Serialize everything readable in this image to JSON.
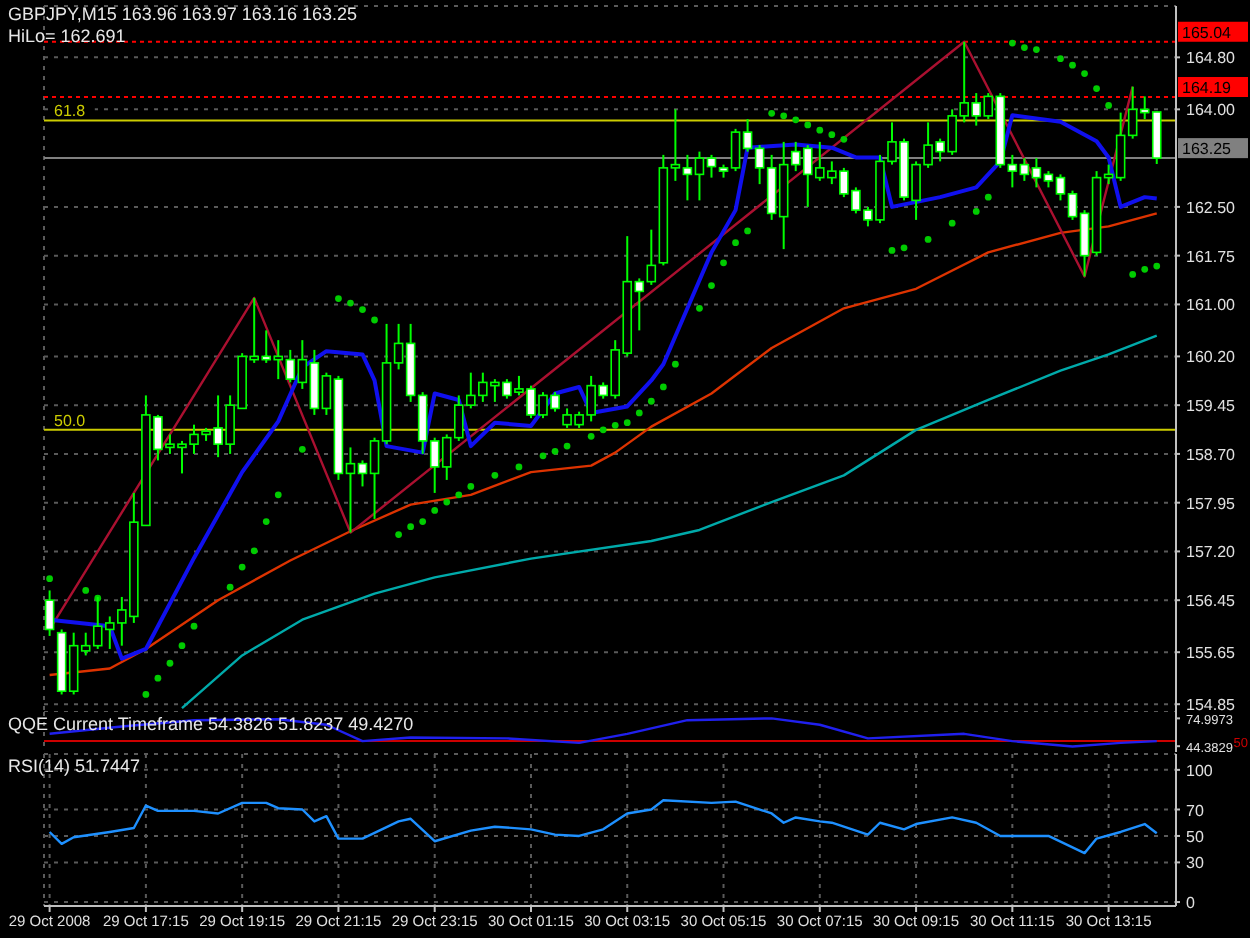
{
  "chart_data": [
    {
      "type": "candlestick",
      "title": "GBPJPY,M15 163.96 163.97 163.16 163.25",
      "subtitle": "HiLo= 162.691",
      "xlim": [
        "2008-10-29T15:08",
        "2008-10-30T14:39"
      ],
      "xticks": [
        {
          "value": "2008-10-29T15:15",
          "label": null
        },
        {
          "value": "2008-10-29T17:15",
          "label": null
        },
        {
          "value": "2008-10-29T19:15",
          "label": null
        },
        {
          "value": "2008-10-29T21:15",
          "label": null
        },
        {
          "value": "2008-10-29T23:15",
          "label": null
        },
        {
          "value": "2008-10-30T01:15",
          "label": null
        },
        {
          "value": "2008-10-30T03:15",
          "label": null
        },
        {
          "value": "2008-10-30T05:15",
          "label": null
        },
        {
          "value": "2008-10-30T07:15",
          "label": null
        },
        {
          "value": "2008-10-30T09:15",
          "label": null
        },
        {
          "value": "2008-10-30T11:15",
          "label": null
        },
        {
          "value": "2008-10-30T13:15",
          "label": null
        }
      ],
      "ylim": [
        154.73,
        165.59
      ],
      "yticks": [
        {
          "value": 154.85,
          "label": "154.85"
        },
        {
          "value": 155.65,
          "label": "155.65"
        },
        {
          "value": 156.45,
          "label": "156.45"
        },
        {
          "value": 157.2,
          "label": "157.20"
        },
        {
          "value": 157.95,
          "label": "157.95"
        },
        {
          "value": 158.7,
          "label": "158.70"
        },
        {
          "value": 159.45,
          "label": "159.45"
        },
        {
          "value": 160.2,
          "label": "160.20"
        },
        {
          "value": 161.0,
          "label": "161.00"
        },
        {
          "value": 161.75,
          "label": "161.75"
        },
        {
          "value": 162.5,
          "label": "162.50"
        },
        {
          "value": 164.0,
          "label": "164.00"
        },
        {
          "value": 164.8,
          "label": "164.80"
        }
      ],
      "tick_labels": "y",
      "grid": true,
      "ref_lines": [
        {
          "axis": "y",
          "value": 165.04,
          "label": "165.04",
          "color": "#ff0000",
          "line_style": "dotted"
        },
        {
          "axis": "y",
          "value": 164.19,
          "label": "164.19",
          "color": "#ff0000",
          "line_style": "dotted"
        },
        {
          "axis": "y",
          "value": 163.83,
          "color": "#cccc00",
          "line_style": "solid"
        },
        {
          "axis": "y",
          "value": 163.25,
          "label": "163.25",
          "color": "#808080",
          "line_style": "solid"
        },
        {
          "axis": "y",
          "value": 159.07,
          "color": "#cccc00",
          "line_style": "solid"
        }
      ],
      "annotations": [
        "61.8",
        "50.0"
      ],
      "series": [
        {
          "type": "line",
          "color": "#00aaaa",
          "x": [
            "2008-10-29T18:00",
            "2008-10-29T19:15",
            "2008-10-29T20:30",
            "2008-10-29T22:00",
            "2008-10-29T23:15",
            "2008-10-30T01:15",
            "2008-10-30T03:45",
            "2008-10-30T04:45",
            "2008-10-30T06:15",
            "2008-10-30T07:45",
            "2008-10-30T09:15",
            "2008-10-30T10:45",
            "2008-10-30T12:15",
            "2008-10-30T13:15",
            "2008-10-30T14:15"
          ],
          "values": [
            154.79,
            155.6,
            156.15,
            156.55,
            156.8,
            157.09,
            157.36,
            157.53,
            157.96,
            158.37,
            159.07,
            159.53,
            159.98,
            160.23,
            160.52
          ]
        },
        {
          "type": "line",
          "color": "#dd3300",
          "x": [
            "2008-10-29T15:15",
            "2008-10-29T16:30",
            "2008-10-29T17:15",
            "2008-10-29T18:45",
            "2008-10-29T20:15",
            "2008-10-29T21:30",
            "2008-10-29T22:45",
            "2008-10-30T00:00",
            "2008-10-30T01:15",
            "2008-10-30T02:30",
            "2008-10-30T03:00",
            "2008-10-30T03:45",
            "2008-10-30T05:00",
            "2008-10-30T06:15",
            "2008-10-30T07:45",
            "2008-10-30T09:15",
            "2008-10-30T10:45",
            "2008-10-30T12:15",
            "2008-10-30T13:15",
            "2008-10-30T14:15"
          ],
          "values": [
            155.3,
            155.4,
            155.7,
            156.45,
            157.06,
            157.51,
            157.92,
            158.07,
            158.42,
            158.52,
            158.72,
            159.12,
            159.63,
            160.33,
            160.94,
            161.24,
            161.8,
            162.1,
            162.2,
            162.4
          ]
        },
        {
          "type": "line",
          "color": "#aa1030",
          "x": [
            "2008-10-29T15:15",
            "2008-10-29T19:30",
            "2008-10-29T21:30",
            "2008-10-30T10:15",
            "2008-10-30T12:45",
            "2008-10-30T13:45"
          ],
          "values": [
            156.0,
            161.1,
            157.49,
            165.04,
            161.43,
            164.35
          ]
        },
        {
          "type": "line",
          "color": "#1010ee",
          "x": [
            "2008-10-29T15:15",
            "2008-10-29T16:30",
            "2008-10-29T16:45",
            "2008-10-29T17:15",
            "2008-10-29T18:15",
            "2008-10-29T19:15",
            "2008-10-29T20:00",
            "2008-10-29T20:30",
            "2008-10-29T21:00",
            "2008-10-29T21:45",
            "2008-10-29T22:00",
            "2008-10-29T22:15",
            "2008-10-29T23:00",
            "2008-10-29T23:15",
            "2008-10-29T23:45",
            "2008-10-30T00:00",
            "2008-10-30T00:30",
            "2008-10-30T01:15",
            "2008-10-30T01:45",
            "2008-10-30T02:15",
            "2008-10-30T02:30",
            "2008-10-30T03:15",
            "2008-10-30T03:45",
            "2008-10-30T04:00",
            "2008-10-30T04:30",
            "2008-10-30T05:00",
            "2008-10-30T05:30",
            "2008-10-30T05:45",
            "2008-10-30T06:45",
            "2008-10-30T07:30",
            "2008-10-30T08:00",
            "2008-10-30T08:30",
            "2008-10-30T08:45",
            "2008-10-30T09:45",
            "2008-10-30T10:30",
            "2008-10-30T11:00",
            "2008-10-30T11:15",
            "2008-10-30T12:15",
            "2008-10-30T13:00",
            "2008-10-30T13:15",
            "2008-10-30T13:30",
            "2008-10-30T14:00",
            "2008-10-30T14:15"
          ],
          "values": [
            156.15,
            156.05,
            155.55,
            155.7,
            157.1,
            158.42,
            159.2,
            160.03,
            160.28,
            160.23,
            159.83,
            158.82,
            158.72,
            159.63,
            159.53,
            158.82,
            159.18,
            159.13,
            159.63,
            159.73,
            159.33,
            159.43,
            159.83,
            160.08,
            160.94,
            161.8,
            162.45,
            163.41,
            163.46,
            163.41,
            163.26,
            163.26,
            162.5,
            162.65,
            162.8,
            163.2,
            163.91,
            163.81,
            163.51,
            163.26,
            162.5,
            162.65,
            162.63
          ]
        },
        {
          "type": "scatter",
          "marker": "circle",
          "color": "#00cc00",
          "x": [
            "2008-10-29T15:15",
            "2008-10-29T16:00",
            "2008-10-29T16:15",
            "2008-10-29T17:15",
            "2008-10-29T17:30",
            "2008-10-29T17:45",
            "2008-10-29T18:00",
            "2008-10-29T18:15",
            "2008-10-29T19:00",
            "2008-10-29T19:15",
            "2008-10-29T19:30",
            "2008-10-29T19:45",
            "2008-10-29T20:00",
            "2008-10-29T20:30",
            "2008-10-29T21:15",
            "2008-10-29T21:30",
            "2008-10-29T21:45",
            "2008-10-29T22:00",
            "2008-10-29T22:30",
            "2008-10-29T22:45",
            "2008-10-29T23:00",
            "2008-10-29T23:15",
            "2008-10-29T23:30",
            "2008-10-29T23:45",
            "2008-10-30T00:00",
            "2008-10-30T00:30",
            "2008-10-30T01:00",
            "2008-10-30T01:30",
            "2008-10-30T01:45",
            "2008-10-30T02:00",
            "2008-10-30T02:30",
            "2008-10-30T02:45",
            "2008-10-30T03:00",
            "2008-10-30T03:15",
            "2008-10-30T03:30",
            "2008-10-30T03:45",
            "2008-10-30T04:00",
            "2008-10-30T04:15",
            "2008-10-30T04:45",
            "2008-10-30T05:00",
            "2008-10-30T05:15",
            "2008-10-30T05:30",
            "2008-10-30T05:45",
            "2008-10-30T06:15",
            "2008-10-30T06:30",
            "2008-10-30T06:45",
            "2008-10-30T07:00",
            "2008-10-30T07:15",
            "2008-10-30T07:30",
            "2008-10-30T07:45",
            "2008-10-30T08:45",
            "2008-10-30T09:00",
            "2008-10-30T09:30",
            "2008-10-30T10:00",
            "2008-10-30T10:30",
            "2008-10-30T10:45",
            "2008-10-30T11:15",
            "2008-10-30T11:30",
            "2008-10-30T11:45",
            "2008-10-30T12:15",
            "2008-10-30T12:30",
            "2008-10-30T12:45",
            "2008-10-30T13:00",
            "2008-10-30T13:15",
            "2008-10-30T13:45",
            "2008-10-30T14:00",
            "2008-10-30T14:15"
          ],
          "values": [
            156.78,
            156.6,
            156.48,
            155.0,
            155.25,
            155.48,
            155.75,
            156.05,
            156.65,
            156.96,
            157.21,
            157.66,
            158.07,
            158.77,
            161.09,
            161.02,
            160.92,
            160.76,
            157.46,
            157.58,
            157.66,
            157.83,
            157.96,
            158.07,
            158.2,
            158.37,
            158.5,
            158.67,
            158.74,
            158.82,
            158.97,
            159.07,
            159.14,
            159.18,
            159.33,
            159.51,
            159.73,
            160.08,
            160.94,
            161.29,
            161.64,
            161.95,
            162.13,
            163.94,
            163.9,
            163.84,
            163.76,
            163.68,
            163.61,
            163.54,
            161.83,
            161.87,
            162.0,
            162.25,
            162.43,
            162.65,
            165.02,
            164.95,
            164.92,
            164.78,
            164.68,
            164.55,
            164.32,
            164.06,
            161.46,
            161.54,
            161.59
          ]
        },
        {
          "color": "#00ff00",
          "x": [
            "2008-10-29T15:15",
            "2008-10-29T15:30",
            "2008-10-29T15:45",
            "2008-10-29T16:00",
            "2008-10-29T16:15",
            "2008-10-29T16:30",
            "2008-10-29T16:45",
            "2008-10-29T17:00",
            "2008-10-29T17:15",
            "2008-10-29T17:30",
            "2008-10-29T17:45",
            "2008-10-29T18:00",
            "2008-10-29T18:15",
            "2008-10-29T18:30",
            "2008-10-29T18:45",
            "2008-10-29T19:00",
            "2008-10-29T19:15",
            "2008-10-29T19:30",
            "2008-10-29T19:45",
            "2008-10-29T20:00",
            "2008-10-29T20:15",
            "2008-10-29T20:30",
            "2008-10-29T20:45",
            "2008-10-29T21:00",
            "2008-10-29T21:15",
            "2008-10-29T21:30",
            "2008-10-29T21:45",
            "2008-10-29T22:00",
            "2008-10-29T22:15",
            "2008-10-29T22:30",
            "2008-10-29T22:45",
            "2008-10-29T23:00",
            "2008-10-29T23:15",
            "2008-10-29T23:30",
            "2008-10-29T23:45",
            "2008-10-30T00:00",
            "2008-10-30T00:15",
            "2008-10-30T00:30",
            "2008-10-30T00:45",
            "2008-10-30T01:00",
            "2008-10-30T01:15",
            "2008-10-30T01:30",
            "2008-10-30T01:45",
            "2008-10-30T02:00",
            "2008-10-30T02:15",
            "2008-10-30T02:30",
            "2008-10-30T02:45",
            "2008-10-30T03:00",
            "2008-10-30T03:15",
            "2008-10-30T03:30",
            "2008-10-30T03:45",
            "2008-10-30T04:00",
            "2008-10-30T04:15",
            "2008-10-30T04:30",
            "2008-10-30T04:45",
            "2008-10-30T05:00",
            "2008-10-30T05:15",
            "2008-10-30T05:30",
            "2008-10-30T05:45",
            "2008-10-30T06:00",
            "2008-10-30T06:15",
            "2008-10-30T06:30",
            "2008-10-30T06:45",
            "2008-10-30T07:00",
            "2008-10-30T07:15",
            "2008-10-30T07:30",
            "2008-10-30T07:45",
            "2008-10-30T08:00",
            "2008-10-30T08:15",
            "2008-10-30T08:30",
            "2008-10-30T08:45",
            "2008-10-30T09:00",
            "2008-10-30T09:15",
            "2008-10-30T09:30",
            "2008-10-30T09:45",
            "2008-10-30T10:00",
            "2008-10-30T10:15",
            "2008-10-30T10:30",
            "2008-10-30T10:45",
            "2008-10-30T11:00",
            "2008-10-30T11:15",
            "2008-10-30T11:30",
            "2008-10-30T11:45",
            "2008-10-30T12:00",
            "2008-10-30T12:15",
            "2008-10-30T12:30",
            "2008-10-30T12:45",
            "2008-10-30T13:00",
            "2008-10-30T13:15",
            "2008-10-30T13:30",
            "2008-10-30T13:45",
            "2008-10-30T14:00",
            "2008-10-30T14:15"
          ],
          "ohlc": [
            [
              156.45,
              156.6,
              155.9,
              156.0
            ],
            [
              155.95,
              156.0,
              155.0,
              155.05
            ],
            [
              155.05,
              155.95,
              155.0,
              155.75
            ],
            [
              155.67,
              155.95,
              155.6,
              155.75
            ],
            [
              155.75,
              156.5,
              155.7,
              156.05
            ],
            [
              156.0,
              156.2,
              155.7,
              156.1
            ],
            [
              156.1,
              156.5,
              155.75,
              156.3
            ],
            [
              156.2,
              158.1,
              156.1,
              157.65
            ],
            [
              157.6,
              159.6,
              157.6,
              159.3
            ],
            [
              159.27,
              159.3,
              158.6,
              158.77
            ],
            [
              158.8,
              159.0,
              158.7,
              158.85
            ],
            [
              158.8,
              158.9,
              158.4,
              158.85
            ],
            [
              158.85,
              159.15,
              158.7,
              159.0
            ],
            [
              159.0,
              159.1,
              158.9,
              159.05
            ],
            [
              159.1,
              159.6,
              158.65,
              158.85
            ],
            [
              158.85,
              159.6,
              158.7,
              159.45
            ],
            [
              159.4,
              160.25,
              159.4,
              160.2
            ],
            [
              160.15,
              161.1,
              160.1,
              160.2
            ],
            [
              160.2,
              160.6,
              160.1,
              160.15
            ],
            [
              160.15,
              160.45,
              159.85,
              160.2
            ],
            [
              160.15,
              160.3,
              159.8,
              159.85
            ],
            [
              159.8,
              160.45,
              159.7,
              160.15
            ],
            [
              160.1,
              160.3,
              159.3,
              159.4
            ],
            [
              159.4,
              159.95,
              159.3,
              159.9
            ],
            [
              159.85,
              159.9,
              158.3,
              158.4
            ],
            [
              158.4,
              158.8,
              157.49,
              158.55
            ],
            [
              158.55,
              158.6,
              158.2,
              158.4
            ],
            [
              158.4,
              158.95,
              157.7,
              158.9
            ],
            [
              158.9,
              160.7,
              158.85,
              160.1
            ],
            [
              160.1,
              160.7,
              160.0,
              160.4
            ],
            [
              160.4,
              160.7,
              159.5,
              159.6
            ],
            [
              159.6,
              159.65,
              158.7,
              158.9
            ],
            [
              158.9,
              158.95,
              158.1,
              158.5
            ],
            [
              158.5,
              159.0,
              158.3,
              158.95
            ],
            [
              158.95,
              159.6,
              158.9,
              159.45
            ],
            [
              159.45,
              159.95,
              159.4,
              159.6
            ],
            [
              159.6,
              159.95,
              159.5,
              159.8
            ],
            [
              159.75,
              159.85,
              159.5,
              159.8
            ],
            [
              159.8,
              159.85,
              159.55,
              159.6
            ],
            [
              159.65,
              159.9,
              159.6,
              159.7
            ],
            [
              159.7,
              159.75,
              159.25,
              159.3
            ],
            [
              159.3,
              159.65,
              159.25,
              159.6
            ],
            [
              159.6,
              159.65,
              159.35,
              159.4
            ],
            [
              159.15,
              159.4,
              159.1,
              159.3
            ],
            [
              159.15,
              159.35,
              159.1,
              159.3
            ],
            [
              159.3,
              159.9,
              159.2,
              159.75
            ],
            [
              159.75,
              159.8,
              159.55,
              159.6
            ],
            [
              159.6,
              160.45,
              159.55,
              160.3
            ],
            [
              160.25,
              162.05,
              160.2,
              161.35
            ],
            [
              161.35,
              161.4,
              160.6,
              161.2
            ],
            [
              161.35,
              162.15,
              161.3,
              161.6
            ],
            [
              161.64,
              163.3,
              161.6,
              163.1
            ],
            [
              163.1,
              164.0,
              162.9,
              163.15
            ],
            [
              163.1,
              163.3,
              162.6,
              163.0
            ],
            [
              163.0,
              163.35,
              162.6,
              163.25
            ],
            [
              163.25,
              163.3,
              162.95,
              163.12
            ],
            [
              163.1,
              163.15,
              162.95,
              163.05
            ],
            [
              163.1,
              163.7,
              163.05,
              163.65
            ],
            [
              163.65,
              163.85,
              163.35,
              163.4
            ],
            [
              163.4,
              163.45,
              162.85,
              163.1
            ],
            [
              163.1,
              163.3,
              162.3,
              162.4
            ],
            [
              162.35,
              163.5,
              161.85,
              163.15
            ],
            [
              163.35,
              163.5,
              163.05,
              163.15
            ],
            [
              163.4,
              163.45,
              162.5,
              163.0
            ],
            [
              162.95,
              163.5,
              162.9,
              163.1
            ],
            [
              162.95,
              163.2,
              162.85,
              163.05
            ],
            [
              163.05,
              163.1,
              162.65,
              162.7
            ],
            [
              162.75,
              162.8,
              162.4,
              162.45
            ],
            [
              162.45,
              162.5,
              162.2,
              162.3
            ],
            [
              162.3,
              163.3,
              162.25,
              163.2
            ],
            [
              163.2,
              163.8,
              163.15,
              163.5
            ],
            [
              163.5,
              163.55,
              162.6,
              162.65
            ],
            [
              162.6,
              163.2,
              162.3,
              163.15
            ],
            [
              163.15,
              163.8,
              163.1,
              163.45
            ],
            [
              163.5,
              163.55,
              163.2,
              163.35
            ],
            [
              163.35,
              164.0,
              163.3,
              163.9
            ],
            [
              163.9,
              165.04,
              163.8,
              164.1
            ],
            [
              164.1,
              164.25,
              163.75,
              163.9
            ],
            [
              163.9,
              164.25,
              163.85,
              164.2
            ],
            [
              164.2,
              164.25,
              163.1,
              163.15
            ],
            [
              163.15,
              163.3,
              162.8,
              163.05
            ],
            [
              163.15,
              163.25,
              162.9,
              163.0
            ],
            [
              163.1,
              163.25,
              162.8,
              162.95
            ],
            [
              163.0,
              163.05,
              162.8,
              162.9
            ],
            [
              162.95,
              163.0,
              162.6,
              162.7
            ],
            [
              162.7,
              162.75,
              162.3,
              162.35
            ],
            [
              162.4,
              162.45,
              161.43,
              161.75
            ],
            [
              161.8,
              163.05,
              161.75,
              162.95
            ],
            [
              162.95,
              163.15,
              162.85,
              163.0
            ],
            [
              162.95,
              163.95,
              162.9,
              163.6
            ],
            [
              163.6,
              164.35,
              163.55,
              164.0
            ],
            [
              164.0,
              164.2,
              163.85,
              163.95
            ],
            [
              163.96,
              163.97,
              163.16,
              163.25
            ]
          ]
        }
      ]
    },
    {
      "type": "line",
      "title": "QQE Current Timeframe 54.3826 51.8237 49.4270",
      "xlim": [
        "2008-10-29T15:08",
        "2008-10-30T14:39"
      ],
      "xticks": [
        {
          "value": "2008-10-29T15:15",
          "label": null
        },
        {
          "value": "2008-10-29T17:15",
          "label": null
        },
        {
          "value": "2008-10-29T19:15",
          "label": null
        },
        {
          "value": "2008-10-29T21:15",
          "label": null
        },
        {
          "value": "2008-10-29T23:15",
          "label": null
        },
        {
          "value": "2008-10-30T01:15",
          "label": null
        },
        {
          "value": "2008-10-30T03:15",
          "label": null
        },
        {
          "value": "2008-10-30T05:15",
          "label": null
        },
        {
          "value": "2008-10-30T07:15",
          "label": null
        },
        {
          "value": "2008-10-30T09:15",
          "label": null
        },
        {
          "value": "2008-10-30T11:15",
          "label": null
        },
        {
          "value": "2008-10-30T13:15",
          "label": null
        }
      ],
      "ylim": [
        38,
        82
      ],
      "yticks": [
        74.9973,
        44.3829
      ],
      "tick_labels": "y",
      "grid": "x",
      "ref_lines": [
        {
          "axis": "y",
          "value": 50,
          "label": "50",
          "color": "#cc0000",
          "line_style": "solid"
        }
      ],
      "series": [
        {
          "color": "#2020ee",
          "x": [
            "2008-10-29T15:15",
            "2008-10-29T16:45",
            "2008-10-29T18:15",
            "2008-10-29T20:00",
            "2008-10-29T21:00",
            "2008-10-29T21:45",
            "2008-10-29T22:45",
            "2008-10-30T00:45",
            "2008-10-30T02:15",
            "2008-10-30T03:15",
            "2008-10-30T04:30",
            "2008-10-30T06:15",
            "2008-10-30T07:15",
            "2008-10-30T08:15",
            "2008-10-30T10:15",
            "2008-10-30T11:15",
            "2008-10-30T12:30",
            "2008-10-30T13:30",
            "2008-10-30T14:15"
          ],
          "values": [
            58,
            66,
            73,
            74,
            68,
            50,
            54,
            53,
            48,
            58,
            73,
            75,
            68,
            53,
            58,
            50,
            44,
            48,
            50
          ]
        }
      ]
    },
    {
      "type": "line",
      "title": "RSI(14) 51.7447",
      "xlim": [
        "2008-10-29T15:08",
        "2008-10-30T14:39"
      ],
      "xticks": [
        {
          "value": "2008-10-29T15:15",
          "label": "29 Oct 2008"
        },
        {
          "value": "2008-10-29T17:15",
          "label": "29 Oct 17:15"
        },
        {
          "value": "2008-10-29T19:15",
          "label": "29 Oct 19:15"
        },
        {
          "value": "2008-10-29T21:15",
          "label": "29 Oct 21:15"
        },
        {
          "value": "2008-10-29T23:15",
          "label": "29 Oct 23:15"
        },
        {
          "value": "2008-10-30T01:15",
          "label": "30 Oct 01:15"
        },
        {
          "value": "2008-10-30T03:15",
          "label": "30 Oct 03:15"
        },
        {
          "value": "2008-10-30T05:15",
          "label": "30 Oct 05:15"
        },
        {
          "value": "2008-10-30T07:15",
          "label": "30 Oct 07:15"
        },
        {
          "value": "2008-10-30T09:15",
          "label": "30 Oct 09:15"
        },
        {
          "value": "2008-10-30T11:15",
          "label": "30 Oct 11:15"
        },
        {
          "value": "2008-10-30T13:15",
          "label": "30 Oct 13:15"
        }
      ],
      "ylim": [
        -3,
        112
      ],
      "yticks": [
        0,
        30,
        50,
        70,
        100
      ],
      "grid": true,
      "series": [
        {
          "color": "#1e90ff",
          "x": [
            "2008-10-29T15:15",
            "2008-10-29T15:30",
            "2008-10-29T15:45",
            "2008-10-29T16:30",
            "2008-10-29T17:00",
            "2008-10-29T17:15",
            "2008-10-29T17:30",
            "2008-10-29T18:15",
            "2008-10-29T18:45",
            "2008-10-29T19:15",
            "2008-10-29T19:45",
            "2008-10-29T20:00",
            "2008-10-29T20:30",
            "2008-10-29T20:45",
            "2008-10-29T21:00",
            "2008-10-29T21:15",
            "2008-10-29T21:45",
            "2008-10-29T22:30",
            "2008-10-29T22:45",
            "2008-10-29T23:15",
            "2008-10-30T00:00",
            "2008-10-30T00:30",
            "2008-10-30T01:15",
            "2008-10-30T01:45",
            "2008-10-30T02:15",
            "2008-10-30T02:45",
            "2008-10-30T03:15",
            "2008-10-30T03:45",
            "2008-10-30T04:00",
            "2008-10-30T05:00",
            "2008-10-30T05:30",
            "2008-10-30T06:15",
            "2008-10-30T06:30",
            "2008-10-30T06:45",
            "2008-10-30T07:15",
            "2008-10-30T07:30",
            "2008-10-30T08:15",
            "2008-10-30T08:30",
            "2008-10-30T09:00",
            "2008-10-30T09:15",
            "2008-10-30T10:00",
            "2008-10-30T10:30",
            "2008-10-30T11:00",
            "2008-10-30T12:00",
            "2008-10-30T12:45",
            "2008-10-30T13:00",
            "2008-10-30T13:30",
            "2008-10-30T14:00",
            "2008-10-30T14:15"
          ],
          "values": [
            53,
            44,
            49,
            53,
            56,
            73,
            69,
            69,
            67,
            75,
            75,
            71,
            70,
            61,
            65,
            48,
            48,
            61,
            63,
            46,
            54,
            57,
            55,
            51,
            50,
            55,
            67,
            70,
            77,
            75,
            76,
            67,
            60,
            64,
            61,
            60,
            51,
            60,
            55,
            59,
            64,
            60,
            50,
            50,
            37,
            48,
            53,
            59,
            52
          ]
        }
      ]
    }
  ]
}
